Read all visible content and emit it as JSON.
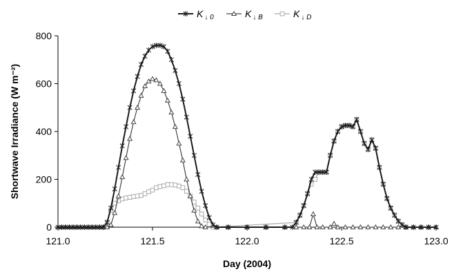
{
  "chart_data": {
    "type": "line",
    "title": "",
    "xlabel": "Day (2004)",
    "ylabel": "Shortwave Irradiance (W m⁻²)",
    "xlim": [
      121.0,
      123.0
    ],
    "ylim": [
      0,
      800
    ],
    "xticks": [
      "121.0",
      "121.5",
      "122.0",
      "122.5",
      "123.0"
    ],
    "yticks": [
      "0",
      "200",
      "400",
      "600",
      "800"
    ],
    "grid": false,
    "legend_position": "top-center",
    "legend": [
      {
        "main": "K",
        "sub": "↓ 0"
      },
      {
        "main": "K",
        "sub": "↓ B"
      },
      {
        "main": "K",
        "sub": "↓ D"
      }
    ],
    "series": [
      {
        "marker": "star",
        "color": "#1a1a1a",
        "points": [
          [
            121.0,
            0
          ],
          [
            121.02,
            0
          ],
          [
            121.04,
            0
          ],
          [
            121.06,
            0
          ],
          [
            121.08,
            0
          ],
          [
            121.1,
            0
          ],
          [
            121.12,
            0
          ],
          [
            121.14,
            0
          ],
          [
            121.16,
            0
          ],
          [
            121.18,
            0
          ],
          [
            121.2,
            0
          ],
          [
            121.22,
            0
          ],
          [
            121.24,
            0
          ],
          [
            121.26,
            20
          ],
          [
            121.28,
            80
          ],
          [
            121.3,
            160
          ],
          [
            121.32,
            250
          ],
          [
            121.34,
            340
          ],
          [
            121.36,
            420
          ],
          [
            121.38,
            500
          ],
          [
            121.4,
            570
          ],
          [
            121.42,
            630
          ],
          [
            121.44,
            680
          ],
          [
            121.46,
            715
          ],
          [
            121.48,
            740
          ],
          [
            121.5,
            755
          ],
          [
            121.52,
            760
          ],
          [
            121.54,
            760
          ],
          [
            121.56,
            755
          ],
          [
            121.58,
            735
          ],
          [
            121.6,
            700
          ],
          [
            121.62,
            655
          ],
          [
            121.64,
            600
          ],
          [
            121.66,
            535
          ],
          [
            121.68,
            460
          ],
          [
            121.7,
            380
          ],
          [
            121.72,
            300
          ],
          [
            121.74,
            220
          ],
          [
            121.76,
            150
          ],
          [
            121.78,
            90
          ],
          [
            121.8,
            40
          ],
          [
            121.82,
            10
          ],
          [
            121.84,
            0
          ],
          [
            121.9,
            0
          ],
          [
            122.0,
            0
          ],
          [
            122.1,
            0
          ],
          [
            122.2,
            0
          ],
          [
            122.24,
            0
          ],
          [
            122.26,
            20
          ],
          [
            122.28,
            50
          ],
          [
            122.3,
            90
          ],
          [
            122.32,
            140
          ],
          [
            122.34,
            200
          ],
          [
            122.36,
            230
          ],
          [
            122.38,
            230
          ],
          [
            122.4,
            230
          ],
          [
            122.42,
            230
          ],
          [
            122.44,
            300
          ],
          [
            122.46,
            360
          ],
          [
            122.48,
            400
          ],
          [
            122.5,
            420
          ],
          [
            122.52,
            425
          ],
          [
            122.54,
            425
          ],
          [
            122.56,
            420
          ],
          [
            122.58,
            450
          ],
          [
            122.6,
            400
          ],
          [
            122.62,
            350
          ],
          [
            122.64,
            325
          ],
          [
            122.66,
            365
          ],
          [
            122.68,
            330
          ],
          [
            122.7,
            250
          ],
          [
            122.72,
            180
          ],
          [
            122.74,
            120
          ],
          [
            122.76,
            80
          ],
          [
            122.78,
            50
          ],
          [
            122.8,
            25
          ],
          [
            122.82,
            10
          ],
          [
            122.84,
            0
          ],
          [
            122.88,
            0
          ],
          [
            122.92,
            0
          ],
          [
            122.96,
            0
          ],
          [
            123.0,
            0
          ]
        ]
      },
      {
        "marker": "triangle",
        "color": "#444444",
        "points": [
          [
            121.0,
            0
          ],
          [
            121.02,
            0
          ],
          [
            121.04,
            0
          ],
          [
            121.06,
            0
          ],
          [
            121.08,
            0
          ],
          [
            121.1,
            0
          ],
          [
            121.12,
            0
          ],
          [
            121.14,
            0
          ],
          [
            121.16,
            0
          ],
          [
            121.18,
            0
          ],
          [
            121.2,
            0
          ],
          [
            121.22,
            0
          ],
          [
            121.24,
            0
          ],
          [
            121.26,
            0
          ],
          [
            121.28,
            10
          ],
          [
            121.3,
            60
          ],
          [
            121.32,
            130
          ],
          [
            121.34,
            210
          ],
          [
            121.36,
            290
          ],
          [
            121.38,
            370
          ],
          [
            121.4,
            440
          ],
          [
            121.42,
            500
          ],
          [
            121.44,
            550
          ],
          [
            121.46,
            590
          ],
          [
            121.48,
            610
          ],
          [
            121.5,
            620
          ],
          [
            121.52,
            615
          ],
          [
            121.54,
            600
          ],
          [
            121.56,
            570
          ],
          [
            121.58,
            530
          ],
          [
            121.6,
            480
          ],
          [
            121.62,
            420
          ],
          [
            121.64,
            350
          ],
          [
            121.66,
            280
          ],
          [
            121.68,
            200
          ],
          [
            121.7,
            130
          ],
          [
            121.72,
            70
          ],
          [
            121.74,
            25
          ],
          [
            121.76,
            5
          ],
          [
            121.78,
            0
          ],
          [
            121.84,
            0
          ],
          [
            121.9,
            0
          ],
          [
            122.0,
            0
          ],
          [
            122.1,
            0
          ],
          [
            122.2,
            0
          ],
          [
            122.26,
            0
          ],
          [
            122.3,
            0
          ],
          [
            122.33,
            0
          ],
          [
            122.35,
            55
          ],
          [
            122.37,
            0
          ],
          [
            122.4,
            0
          ],
          [
            122.44,
            0
          ],
          [
            122.46,
            15
          ],
          [
            122.48,
            0
          ],
          [
            122.52,
            0
          ],
          [
            122.56,
            0
          ],
          [
            122.6,
            0
          ],
          [
            122.64,
            0
          ],
          [
            122.68,
            0
          ],
          [
            122.72,
            0
          ],
          [
            122.76,
            0
          ],
          [
            122.8,
            0
          ],
          [
            122.84,
            0
          ],
          [
            122.88,
            0
          ],
          [
            122.92,
            0
          ],
          [
            122.96,
            0
          ],
          [
            123.0,
            0
          ]
        ]
      },
      {
        "marker": "square",
        "color": "#aaaaaa",
        "points": [
          [
            121.24,
            0
          ],
          [
            121.26,
            20
          ],
          [
            121.28,
            70
          ],
          [
            121.3,
            100
          ],
          [
            121.32,
            110
          ],
          [
            121.34,
            118
          ],
          [
            121.36,
            122
          ],
          [
            121.38,
            125
          ],
          [
            121.4,
            128
          ],
          [
            121.42,
            130
          ],
          [
            121.44,
            133
          ],
          [
            121.46,
            140
          ],
          [
            121.48,
            148
          ],
          [
            121.5,
            155
          ],
          [
            121.52,
            165
          ],
          [
            121.54,
            170
          ],
          [
            121.56,
            173
          ],
          [
            121.58,
            178
          ],
          [
            121.6,
            178
          ],
          [
            121.62,
            176
          ],
          [
            121.64,
            172
          ],
          [
            121.66,
            165
          ],
          [
            121.68,
            150
          ],
          [
            121.7,
            130
          ],
          [
            121.72,
            105
          ],
          [
            121.74,
            80
          ],
          [
            121.76,
            55
          ],
          [
            121.78,
            30
          ],
          [
            121.8,
            12
          ],
          [
            121.82,
            0
          ],
          [
            122.26,
            20
          ],
          [
            122.28,
            50
          ],
          [
            122.3,
            90
          ],
          [
            122.32,
            140
          ],
          [
            122.34,
            180
          ],
          [
            122.36,
            200
          ],
          [
            122.38,
            230
          ],
          [
            122.4,
            230
          ],
          [
            122.42,
            230
          ],
          [
            122.44,
            300
          ],
          [
            122.46,
            360
          ],
          [
            122.48,
            400
          ],
          [
            122.5,
            420
          ],
          [
            122.52,
            425
          ],
          [
            122.54,
            425
          ],
          [
            122.56,
            420
          ],
          [
            122.58,
            450
          ],
          [
            122.6,
            400
          ],
          [
            122.62,
            350
          ],
          [
            122.64,
            325
          ],
          [
            122.66,
            365
          ],
          [
            122.68,
            330
          ],
          [
            122.7,
            250
          ],
          [
            122.72,
            180
          ],
          [
            122.74,
            120
          ],
          [
            122.76,
            80
          ],
          [
            122.78,
            50
          ],
          [
            122.8,
            25
          ],
          [
            122.82,
            10
          ],
          [
            122.84,
            0
          ]
        ]
      }
    ]
  }
}
